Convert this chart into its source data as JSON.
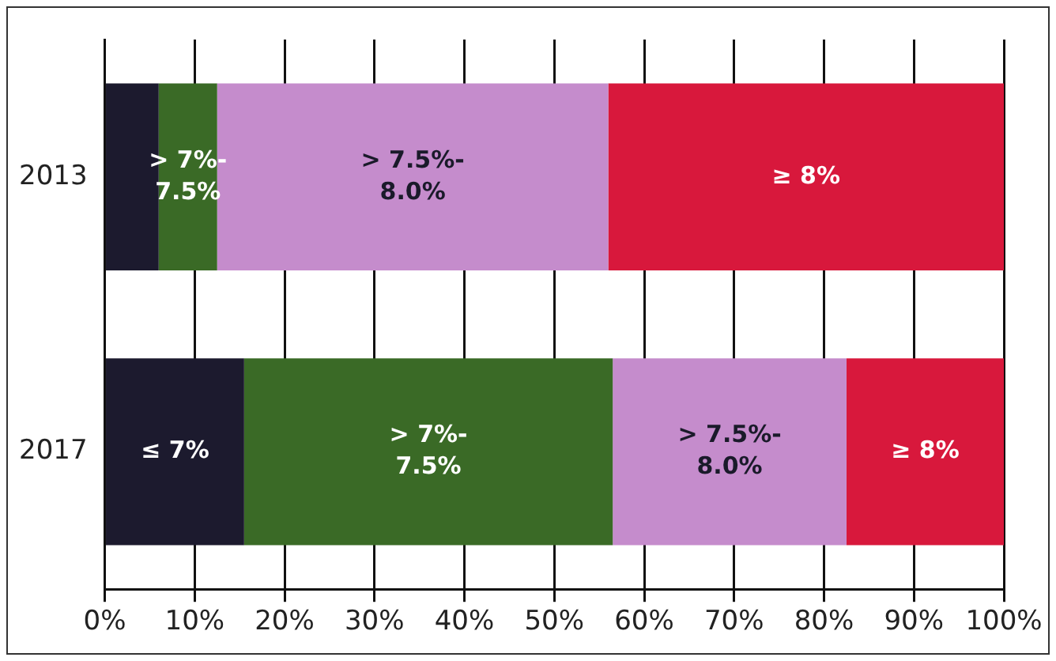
{
  "chart_data": {
    "type": "bar",
    "orientation": "horizontal",
    "stacked": true,
    "categories": [
      "2013",
      "2017"
    ],
    "series": [
      {
        "name": "≤ 7%",
        "color": "#1c1a2e",
        "values": [
          6,
          15.5
        ]
      },
      {
        "name": "> 7%-7.5%",
        "color": "#3a6a26",
        "values": [
          6.5,
          41
        ]
      },
      {
        "name": "> 7.5%-8.0%",
        "color": "#c58ccc",
        "values": [
          43.5,
          26
        ]
      },
      {
        "name": "≥ 8%",
        "color": "#d8183c",
        "values": [
          44,
          17.5
        ]
      }
    ],
    "xlim": [
      0,
      100
    ],
    "xticks": [
      {
        "value": 0,
        "label": "0%"
      },
      {
        "value": 10,
        "label": "10%"
      },
      {
        "value": 20,
        "label": "20%"
      },
      {
        "value": 30,
        "label": "30%"
      },
      {
        "value": 40,
        "label": "40%"
      },
      {
        "value": 50,
        "label": "50%"
      },
      {
        "value": 60,
        "label": "60%"
      },
      {
        "value": 70,
        "label": "70%"
      },
      {
        "value": 80,
        "label": "80%"
      },
      {
        "value": 90,
        "label": "90%"
      },
      {
        "value": 100,
        "label": "100%"
      }
    ],
    "grid": "x",
    "legend": false
  }
}
